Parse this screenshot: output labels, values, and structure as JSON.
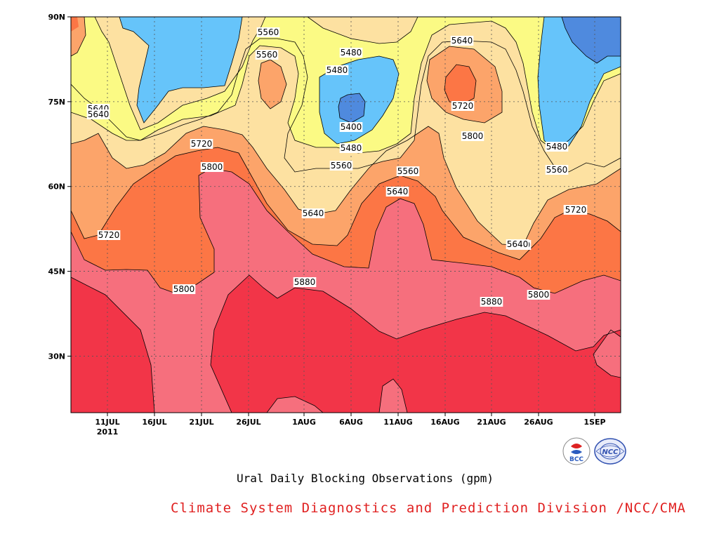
{
  "chart_data": {
    "type": "heatmap",
    "subtype": "filled-contour",
    "title": "Ural Daily Blocking Observations (gpm)",
    "x_ticks": [
      "11JUL",
      "16JUL",
      "21JUL",
      "26JUL",
      "1AUG",
      "6AUG",
      "11AUG",
      "16AUG",
      "21AUG",
      "26AUG",
      "1SEP"
    ],
    "x_year_label": "2011",
    "y_ticks": [
      "90N",
      "75N",
      "60N",
      "45N",
      "30N"
    ],
    "y_range": [
      20,
      90
    ],
    "x_range": [
      "2011-07-06",
      "2011-09-05"
    ],
    "contour_levels": [
      5400,
      5480,
      5560,
      5640,
      5720,
      5800,
      5880
    ],
    "contour_labels": [
      "5640",
      "5560",
      "5480",
      "5640",
      "5720",
      "5800",
      "5720",
      "5800",
      "5560",
      "5640",
      "5480",
      "5400",
      "5480",
      "5560",
      "5560",
      "5640",
      "5880",
      "5720",
      "5800",
      "5640",
      "5720",
      "5640",
      "5640",
      "5480",
      "5560",
      "5720",
      "5880",
      "5800"
    ],
    "colors": {
      "lt5400": "#4f8ade",
      "b5400_5480": "#66c4fa",
      "b5480_5560": "#fbfa84",
      "b5560_5640": "#fde1a1",
      "b5640_5720": "#fca46a",
      "b5720_5800": "#fc7645",
      "b5800_5880": "#f66f7d",
      "gt5880": "#f23548"
    },
    "grid": true
  },
  "footer": {
    "credit": "Climate System Diagnostics and Prediction Division /NCC/CMA",
    "credit_color": "#e02020"
  },
  "logos": {
    "bcc": "BCC",
    "ncc": "NCC"
  }
}
